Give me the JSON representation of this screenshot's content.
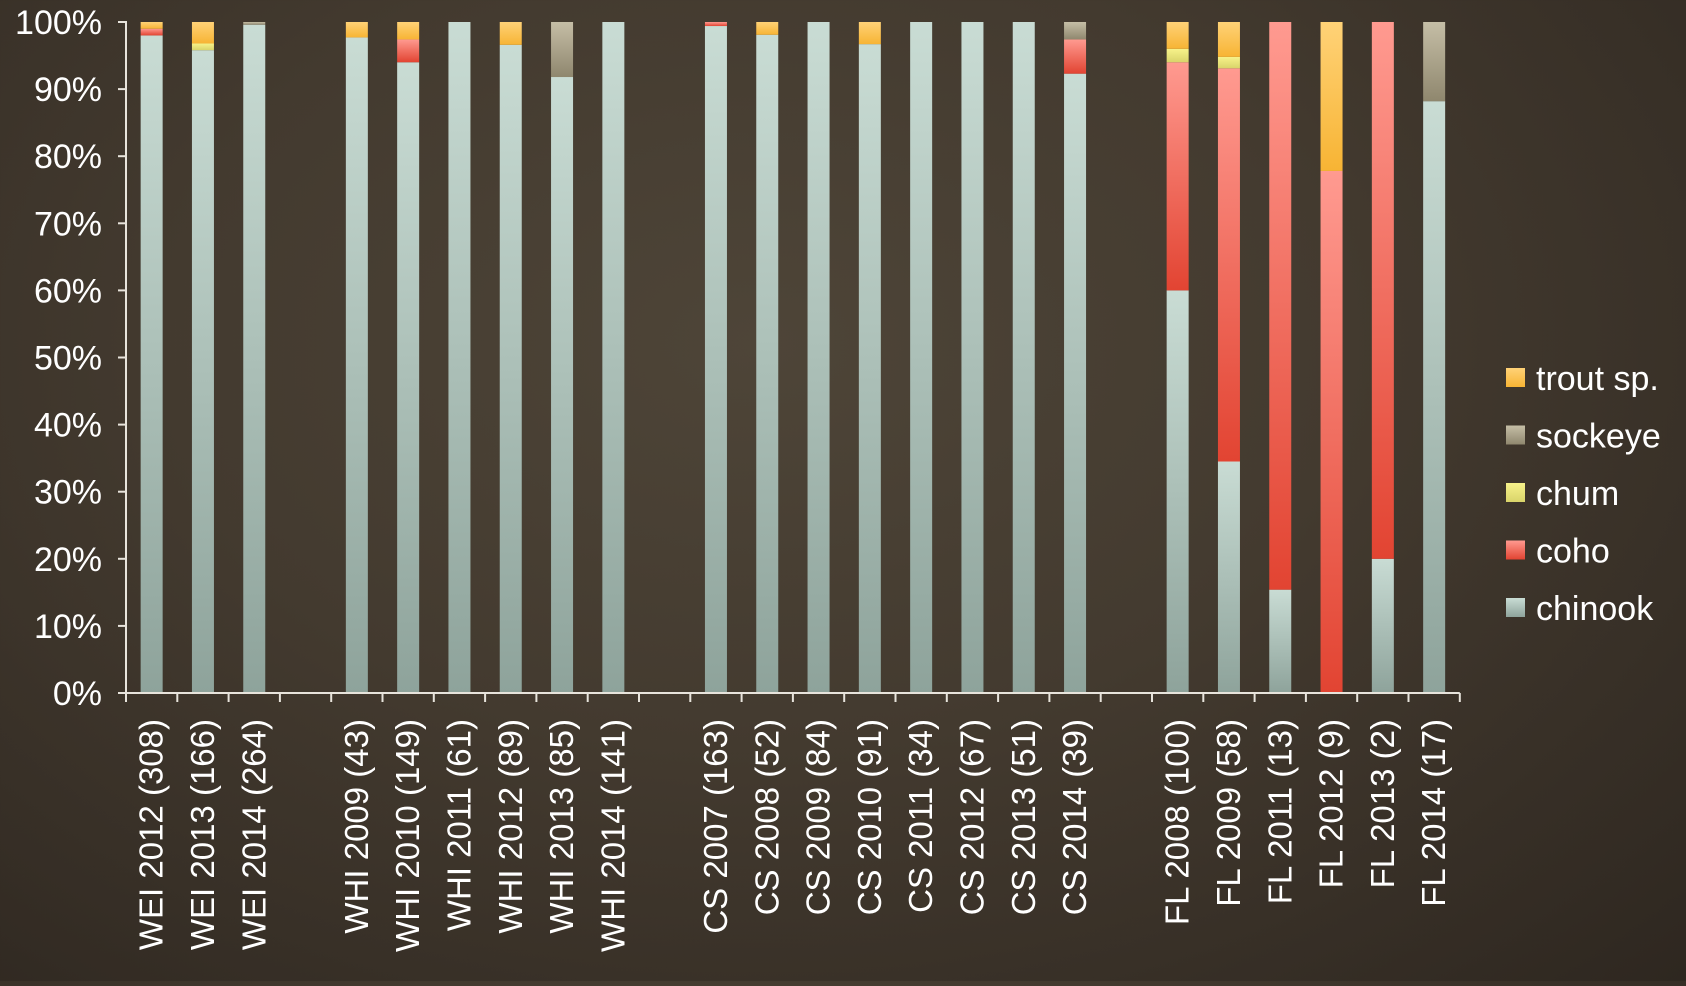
{
  "chart_data": {
    "type": "bar",
    "stacked": true,
    "percent": true,
    "ylim": [
      0,
      100
    ],
    "yticks": [
      "0%",
      "10%",
      "20%",
      "30%",
      "40%",
      "50%",
      "60%",
      "70%",
      "80%",
      "90%",
      "100%"
    ],
    "legend_position": "right",
    "groups": [
      [
        "WEI 2012 (308)",
        "WEI 2013 (166)",
        "WEI 2014 (264)"
      ],
      [
        "WHI 2009 (43)",
        "WHI 2010 (149)",
        "WHI 2011 (61)",
        "WHI 2012 (89)",
        "WHI 2013 (85)",
        "WHI 2014 (141)"
      ],
      [
        "CS 2007 (163)",
        "CS 2008 (52)",
        "CS 2009 (84)",
        "CS 2010 (91)",
        "CS 2011 (34)",
        "CS 2012 (67)",
        "CS 2013 (51)",
        "CS 2014 (39)"
      ],
      [
        "FL 2008 (100)",
        "FL 2009 (58)",
        "FL 2011 (13)",
        "FL 2012 (9)",
        "FL 2013 (2)",
        "FL 2014 (17)"
      ]
    ],
    "categories": [
      "WEI 2012 (308)",
      "WEI 2013 (166)",
      "WEI 2014 (264)",
      "WHI 2009 (43)",
      "WHI 2010 (149)",
      "WHI 2011 (61)",
      "WHI 2012 (89)",
      "WHI 2013 (85)",
      "WHI 2014 (141)",
      "CS 2007 (163)",
      "CS 2008 (52)",
      "CS 2009 (84)",
      "CS 2010 (91)",
      "CS 2011 (34)",
      "CS 2012 (67)",
      "CS 2013 (51)",
      "CS 2014 (39)",
      "FL 2008 (100)",
      "FL 2009 (58)",
      "FL 2011 (13)",
      "FL 2012 (9)",
      "FL 2013 (2)",
      "FL 2014 (17)"
    ],
    "series": [
      {
        "name": "chinook",
        "color_top": "#c9dcd4",
        "color_bottom": "#8ea39b",
        "values": [
          98.0,
          95.8,
          99.6,
          97.7,
          94.0,
          100,
          96.6,
          91.8,
          100,
          99.4,
          98.1,
          100,
          96.7,
          100,
          100,
          100,
          92.3,
          60.0,
          34.5,
          15.4,
          0,
          20.0,
          88.2
        ]
      },
      {
        "name": "coho",
        "color_top": "#ff9a90",
        "color_bottom": "#e24432",
        "values": [
          1.0,
          0,
          0,
          0,
          3.4,
          0,
          0,
          0,
          0,
          0.6,
          0,
          0,
          0,
          0,
          0,
          0,
          5.1,
          34.0,
          58.6,
          84.6,
          77.8,
          80.0,
          0
        ]
      },
      {
        "name": "chum",
        "color_top": "#f7f28a",
        "color_bottom": "#d9d46a",
        "values": [
          0,
          1.0,
          0,
          0,
          0,
          0,
          0,
          0,
          0,
          0,
          0,
          0,
          0,
          0,
          0,
          0,
          0,
          2.0,
          1.7,
          0,
          0,
          0,
          0
        ]
      },
      {
        "name": "sockeye",
        "color_top": "#c5bea6",
        "color_bottom": "#8f876e",
        "values": [
          0,
          0,
          0.4,
          0,
          0,
          0,
          0,
          8.2,
          0,
          0,
          0,
          0,
          0,
          0,
          0,
          0,
          2.6,
          0,
          0,
          0,
          0,
          0,
          11.8
        ]
      },
      {
        "name": "trout sp.",
        "color_top": "#ffd277",
        "color_bottom": "#f7b434",
        "values": [
          1.0,
          3.2,
          0,
          2.3,
          2.6,
          0,
          3.4,
          0,
          0,
          0,
          1.9,
          0,
          3.3,
          0,
          0,
          0,
          0,
          4.0,
          5.2,
          0,
          22.2,
          0,
          0
        ]
      }
    ],
    "legend_order": [
      "trout sp.",
      "sockeye",
      "chum",
      "coho",
      "chinook"
    ]
  }
}
